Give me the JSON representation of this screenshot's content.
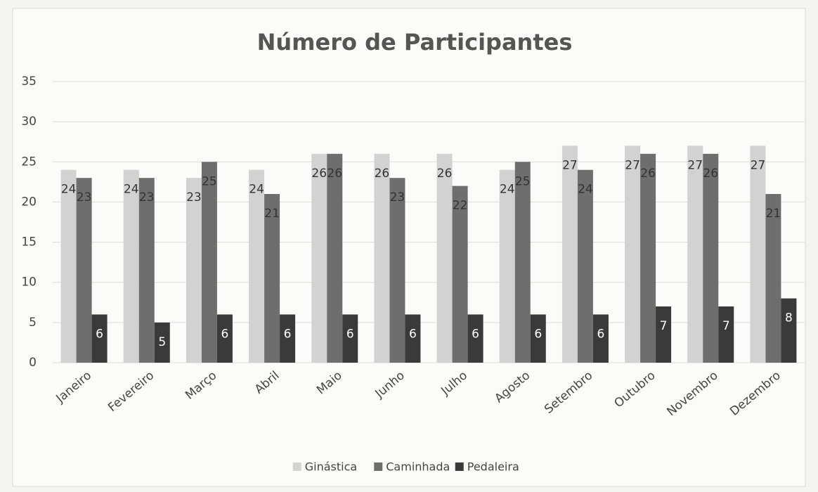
{
  "chart_data": {
    "type": "bar",
    "title": "Número de Participantes",
    "categories": [
      "Janeiro",
      "Fevereiro",
      "Março",
      "Abril",
      "Maio",
      "Junho",
      "Julho",
      "Agosto",
      "Setembro",
      "Outubro",
      "Novembro",
      "Dezembro"
    ],
    "series": [
      {
        "name": "Ginástica",
        "color": "#d2d2d2",
        "values": [
          24,
          24,
          23,
          24,
          26,
          26,
          26,
          24,
          27,
          27,
          27,
          27
        ]
      },
      {
        "name": "Caminhada",
        "color": "#6e6e6e",
        "values": [
          23,
          23,
          25,
          21,
          26,
          23,
          22,
          25,
          24,
          26,
          26,
          21
        ]
      },
      {
        "name": "Pedaleira",
        "color": "#3a3a3a",
        "values": [
          6,
          5,
          6,
          6,
          6,
          6,
          6,
          6,
          6,
          7,
          7,
          8
        ]
      }
    ],
    "ylim": [
      0,
      35
    ],
    "yticks": [
      0,
      5,
      10,
      15,
      20,
      25,
      30,
      35
    ],
    "grid": true,
    "legend": "bottom"
  }
}
